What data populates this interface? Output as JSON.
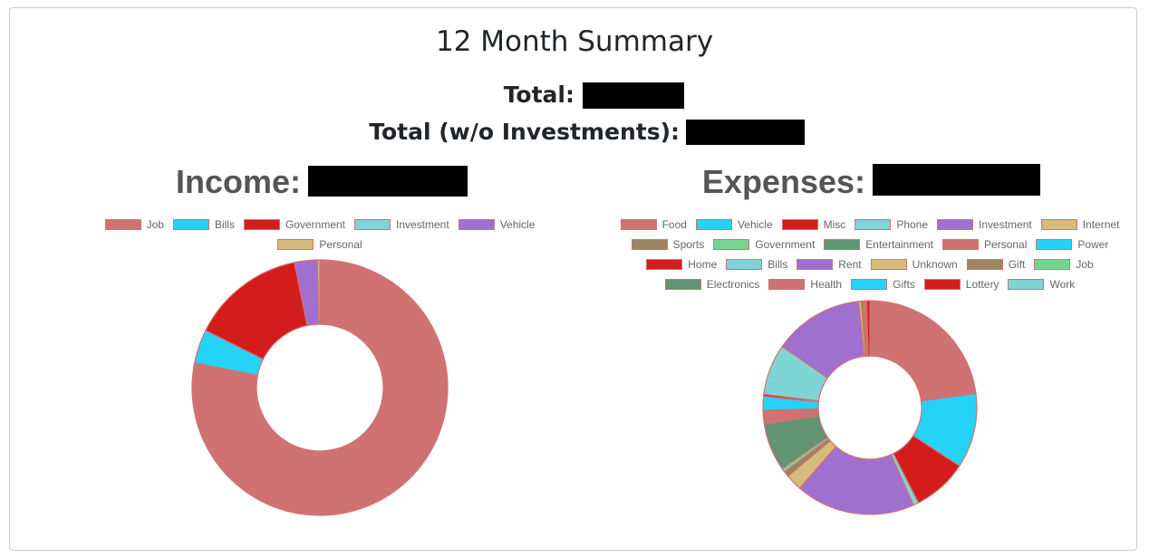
{
  "header": {
    "title": "12 Month Summary",
    "total_label": "Total:",
    "total_wo_label": "Total (w/o Investments):"
  },
  "chart_data": [
    {
      "type": "doughnut",
      "title": "Income:",
      "categories": [
        "Job",
        "Bills",
        "Government",
        "Investment",
        "Vehicle",
        "Personal"
      ],
      "values": [
        78.1,
        4.3,
        14.4,
        0,
        2.9,
        0.3
      ],
      "colors": [
        "#d07272",
        "#24d3f7",
        "#d41c1c",
        "#7fd4d6",
        "#a070d0",
        "#d6bb7c"
      ],
      "border_color": "#d07272",
      "legend": "top"
    },
    {
      "type": "doughnut",
      "title": "Expenses:",
      "categories": [
        "Food",
        "Vehicle",
        "Misc",
        "Phone",
        "Investment",
        "Internet",
        "Sports",
        "Government",
        "Entertainment",
        "Personal",
        "Power",
        "Home",
        "Bills",
        "Rent",
        "Unknown",
        "Gift",
        "Job",
        "Electronics",
        "Health",
        "Gifts",
        "Lottery",
        "Work"
      ],
      "values": [
        22.9,
        11.3,
        8.3,
        0.8,
        18.1,
        2.5,
        0.8,
        0.6,
        7.2,
        2.1,
        2.1,
        0.3,
        7.7,
        13.6,
        0.4,
        0.4,
        0.1,
        0.1,
        0.1,
        0.1,
        0.5,
        0
      ],
      "colors": [
        "#d07272",
        "#24d3f7",
        "#d41c1c",
        "#7fd4d6",
        "#a070d0",
        "#d6bb7c",
        "#9c8464",
        "#74d494",
        "#609472",
        "#d07272",
        "#24d3f7",
        "#d41c1c",
        "#7fd4d6",
        "#a070d0",
        "#d6bb7c",
        "#9c8464",
        "#74d494",
        "#609472",
        "#d07272",
        "#24d3f7",
        "#d41c1c",
        "#7fd4d6"
      ],
      "border_color": "#d07272",
      "legend": "top"
    }
  ]
}
